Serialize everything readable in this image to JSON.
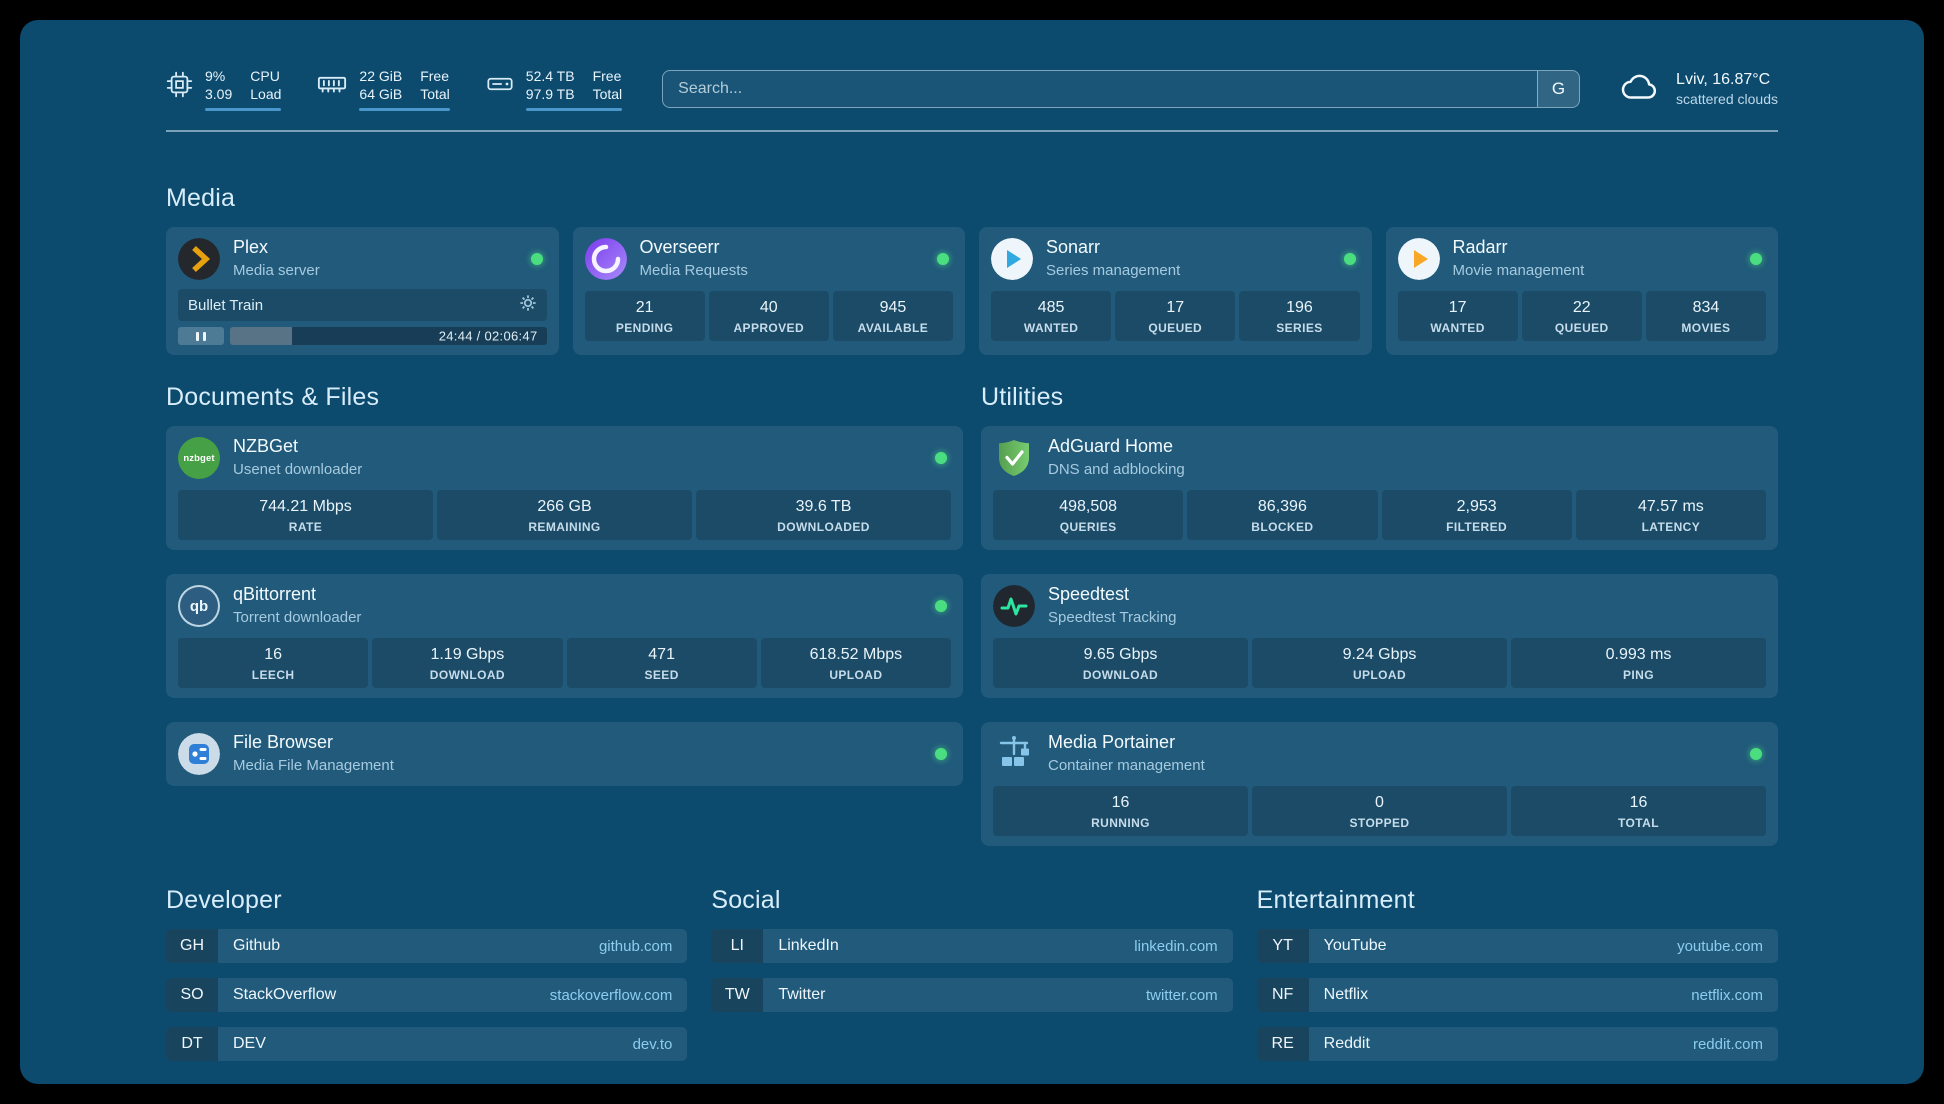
{
  "topbar": {
    "resources": [
      {
        "icon": "cpu-icon",
        "value_top": "9%",
        "value_bottom": "3.09",
        "label_top": "CPU",
        "label_bottom": "Load"
      },
      {
        "icon": "memory-icon",
        "value_top": "22 GiB",
        "value_bottom": "64 GiB",
        "label_top": "Free",
        "label_bottom": "Total"
      },
      {
        "icon": "disk-icon",
        "value_top": "52.4 TB",
        "value_bottom": "97.9 TB",
        "label_top": "Free",
        "label_bottom": "Total"
      }
    ],
    "search": {
      "placeholder": "Search...",
      "provider_button": "G"
    },
    "weather": {
      "icon": "cloud-icon",
      "location": "Lviv, 16.87°C",
      "condition": "scattered clouds"
    }
  },
  "sections": {
    "media": "Media",
    "documents": "Documents & Files",
    "utilities": "Utilities",
    "developer": "Developer",
    "social": "Social",
    "entertainment": "Entertainment"
  },
  "services": {
    "plex": {
      "title": "Plex",
      "subtitle": "Media server",
      "status": "online",
      "now_playing": {
        "title": "Bullet Train",
        "time": "24:44 / 02:06:47",
        "progress_percent": 19.5
      }
    },
    "overseerr": {
      "title": "Overseerr",
      "subtitle": "Media Requests",
      "status": "online",
      "stats": [
        {
          "value": "21",
          "label": "PENDING"
        },
        {
          "value": "40",
          "label": "APPROVED"
        },
        {
          "value": "945",
          "label": "AVAILABLE"
        }
      ]
    },
    "sonarr": {
      "title": "Sonarr",
      "subtitle": "Series management",
      "status": "online",
      "stats": [
        {
          "value": "485",
          "label": "WANTED"
        },
        {
          "value": "17",
          "label": "QUEUED"
        },
        {
          "value": "196",
          "label": "SERIES"
        }
      ]
    },
    "radarr": {
      "title": "Radarr",
      "subtitle": "Movie management",
      "status": "online",
      "stats": [
        {
          "value": "17",
          "label": "WANTED"
        },
        {
          "value": "22",
          "label": "QUEUED"
        },
        {
          "value": "834",
          "label": "MOVIES"
        }
      ]
    },
    "nzbget": {
      "title": "NZBGet",
      "subtitle": "Usenet downloader",
      "status": "online",
      "stats": [
        {
          "value": "744.21 Mbps",
          "label": "RATE"
        },
        {
          "value": "266 GB",
          "label": "REMAINING"
        },
        {
          "value": "39.6 TB",
          "label": "DOWNLOADED"
        }
      ]
    },
    "qbittorrent": {
      "title": "qBittorrent",
      "subtitle": "Torrent downloader",
      "status": "online",
      "stats": [
        {
          "value": "16",
          "label": "LEECH"
        },
        {
          "value": "1.19 Gbps",
          "label": "DOWNLOAD"
        },
        {
          "value": "471",
          "label": "SEED"
        },
        {
          "value": "618.52 Mbps",
          "label": "UPLOAD"
        }
      ]
    },
    "filebrowser": {
      "title": "File Browser",
      "subtitle": "Media File Management",
      "status": "online"
    },
    "adguard": {
      "title": "AdGuard Home",
      "subtitle": "DNS and adblocking",
      "stats": [
        {
          "value": "498,508",
          "label": "QUERIES"
        },
        {
          "value": "86,396",
          "label": "BLOCKED"
        },
        {
          "value": "2,953",
          "label": "FILTERED"
        },
        {
          "value": "47.57 ms",
          "label": "LATENCY"
        }
      ]
    },
    "speedtest": {
      "title": "Speedtest",
      "subtitle": "Speedtest Tracking",
      "stats": [
        {
          "value": "9.65 Gbps",
          "label": "DOWNLOAD"
        },
        {
          "value": "9.24 Gbps",
          "label": "UPLOAD"
        },
        {
          "value": "0.993 ms",
          "label": "PING"
        }
      ]
    },
    "portainer": {
      "title": "Media Portainer",
      "subtitle": "Container management",
      "status": "online",
      "stats": [
        {
          "value": "16",
          "label": "RUNNING"
        },
        {
          "value": "0",
          "label": "STOPPED"
        },
        {
          "value": "16",
          "label": "TOTAL"
        }
      ]
    }
  },
  "bookmarks": {
    "developer": [
      {
        "abbr": "GH",
        "name": "Github",
        "url": "github.com"
      },
      {
        "abbr": "SO",
        "name": "StackOverflow",
        "url": "stackoverflow.com"
      },
      {
        "abbr": "DT",
        "name": "DEV",
        "url": "dev.to"
      }
    ],
    "social": [
      {
        "abbr": "LI",
        "name": "LinkedIn",
        "url": "linkedin.com"
      },
      {
        "abbr": "TW",
        "name": "Twitter",
        "url": "twitter.com"
      }
    ],
    "entertainment": [
      {
        "abbr": "YT",
        "name": "YouTube",
        "url": "youtube.com"
      },
      {
        "abbr": "NF",
        "name": "Netflix",
        "url": "netflix.com"
      },
      {
        "abbr": "RE",
        "name": "Reddit",
        "url": "reddit.com"
      }
    ]
  },
  "colors": {
    "background": "#0c4a6e",
    "status_online": "#4ade80",
    "accent_link": "#8ccdef",
    "resource_bar": "#4a97cc"
  }
}
